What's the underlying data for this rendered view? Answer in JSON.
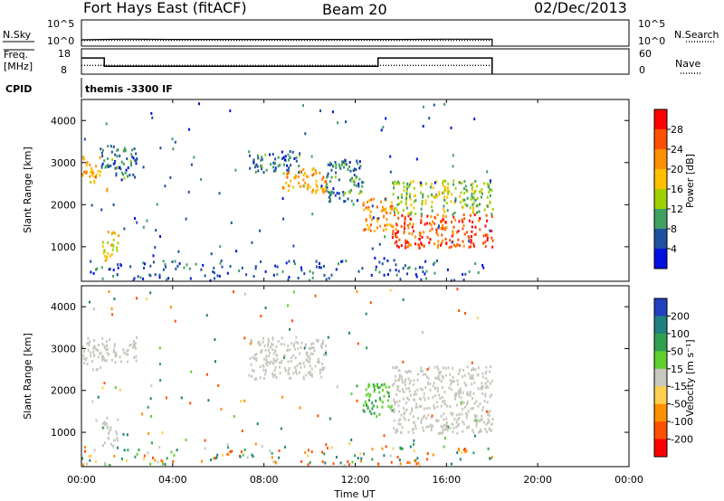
{
  "header": {
    "station": "Fort Hays East (fitACF)",
    "beam": "Beam 20",
    "date": "02/Dec/2013"
  },
  "top_panels": {
    "nsky_label": "N.Sky",
    "nsearch_label": "N.Search",
    "freq_label_line1": "Freq.",
    "freq_label_line2": "[MHz]",
    "nave_label": "Nave",
    "cpid_label": "CPID",
    "cpid_value": "themis -3300 IF",
    "nsky_ticks": [
      "10^5",
      "10^0"
    ],
    "nsearch_ticks": [
      "10^5",
      "10^0"
    ],
    "freq_ticks": [
      "18",
      "8"
    ],
    "nave_ticks": [
      "60",
      "0"
    ]
  },
  "x_axis": {
    "label": "Time UT",
    "ticks": [
      "00:00",
      "04:00",
      "08:00",
      "12:00",
      "16:00",
      "20:00",
      "00:00"
    ]
  },
  "power_panel": {
    "ylabel": "Slant Range [km]",
    "colorbar_label": "Power [dB]",
    "colorbar_ticks": [
      "28",
      "24",
      "20",
      "16",
      "12",
      "8",
      "4"
    ],
    "colorbar_colors": [
      "#ff0000",
      "#ff5000",
      "#ff9000",
      "#ffc000",
      "#a0d000",
      "#40a060",
      "#2050a0",
      "#0010e0"
    ],
    "yticks": [
      "4000",
      "3000",
      "2000",
      "1000"
    ]
  },
  "velocity_panel": {
    "ylabel": "Slant Range [km]",
    "colorbar_label": "Velocity [m s⁻¹]",
    "colorbar_ticks": [
      "200",
      "100",
      "50",
      "15",
      "-15",
      "-50",
      "-100",
      "-200"
    ],
    "colorbar_colors": [
      "#2040c0",
      "#208080",
      "#30a050",
      "#60d030",
      "#c8c8c0",
      "#ffd050",
      "#ff9000",
      "#ff5000",
      "#ff0000"
    ],
    "yticks": [
      "4000",
      "3000",
      "2000",
      "1000"
    ]
  },
  "chart_data": [
    {
      "type": "line",
      "title": "N.Sky / N.Search",
      "xlabel": "Time UT",
      "x": [
        "00:00",
        "01:00",
        "02:00",
        "04:00",
        "06:00",
        "08:00",
        "10:00",
        "12:00",
        "14:00",
        "16:00",
        "18:00"
      ],
      "series": [
        {
          "name": "N.Sky",
          "values": [
            8,
            10,
            12,
            10,
            10,
            10,
            10,
            10,
            10,
            12,
            12
          ]
        },
        {
          "name": "N.Search",
          "values": [
            5,
            6,
            6,
            6,
            6,
            6,
            6,
            6,
            6,
            6,
            6
          ]
        }
      ],
      "ylim": [
        1,
        100000
      ],
      "yscale": "log"
    },
    {
      "type": "line",
      "title": "Freq. / Nave",
      "xlabel": "Time UT",
      "x": [
        "00:00",
        "01:00",
        "01:00",
        "13:00",
        "13:00",
        "18:00"
      ],
      "series": [
        {
          "name": "Freq. [MHz]",
          "values": [
            14.5,
            14.5,
            11,
            11,
            14.5,
            14.5
          ]
        },
        {
          "name": "Nave",
          "values": [
            20,
            20,
            20,
            20,
            20,
            20
          ]
        }
      ],
      "ylim": [
        8,
        18
      ]
    },
    {
      "type": "heatmap",
      "title": "Power [dB]",
      "xlabel": "Time UT",
      "ylabel": "Slant Range [km]",
      "xlim": [
        0,
        24
      ],
      "ylim": [
        180,
        4500
      ],
      "range_gates": [
        {
          "t_start": 0.0,
          "t_end": 0.8,
          "r_start": 2500,
          "r_end": 3200,
          "power": 20
        },
        {
          "t_start": 0.8,
          "t_end": 1.5,
          "r_start": 2900,
          "r_end": 3500,
          "power": 8
        },
        {
          "t_start": 1.4,
          "t_end": 2.4,
          "r_start": 2600,
          "r_end": 3400,
          "power": 8
        },
        {
          "t_start": 0.9,
          "t_end": 1.6,
          "r_start": 700,
          "r_end": 1400,
          "power": 18
        },
        {
          "t_start": 1.0,
          "t_end": 1.2,
          "r_start": 2300,
          "r_end": 2500,
          "power": 20
        },
        {
          "t_start": 7.3,
          "t_end": 9.6,
          "r_start": 2800,
          "r_end": 3300,
          "power": 8
        },
        {
          "t_start": 8.8,
          "t_end": 10.7,
          "r_start": 2300,
          "r_end": 2900,
          "power": 20
        },
        {
          "t_start": 10.7,
          "t_end": 12.3,
          "r_start": 2100,
          "r_end": 3100,
          "power": 8
        },
        {
          "t_start": 12.3,
          "t_end": 13.6,
          "r_start": 1400,
          "r_end": 2200,
          "power": 22
        },
        {
          "t_start": 13.6,
          "t_end": 18.0,
          "r_start": 1000,
          "r_end": 1800,
          "power": 26
        },
        {
          "t_start": 13.6,
          "t_end": 18.0,
          "r_start": 1800,
          "r_end": 2600,
          "power": 14
        }
      ]
    },
    {
      "type": "heatmap",
      "title": "Velocity [m s⁻¹]",
      "xlabel": "Time UT",
      "ylabel": "Slant Range [km]",
      "xlim": [
        0,
        24
      ],
      "ylim": [
        180,
        4500
      ],
      "range_gates": [
        {
          "t_start": 0.0,
          "t_end": 0.8,
          "r_start": 2500,
          "r_end": 3300,
          "velocity": 0
        },
        {
          "t_start": 0.8,
          "t_end": 2.4,
          "r_start": 2700,
          "r_end": 3300,
          "velocity": 0
        },
        {
          "t_start": 0.9,
          "t_end": 1.6,
          "r_start": 700,
          "r_end": 1400,
          "velocity": 0
        },
        {
          "t_start": 7.3,
          "t_end": 10.7,
          "r_start": 2300,
          "r_end": 3300,
          "velocity": 0
        },
        {
          "t_start": 12.3,
          "t_end": 13.6,
          "r_start": 1400,
          "r_end": 2200,
          "velocity": 30
        },
        {
          "t_start": 13.6,
          "t_end": 18.0,
          "r_start": 1000,
          "r_end": 2600,
          "velocity": 0
        }
      ]
    }
  ]
}
